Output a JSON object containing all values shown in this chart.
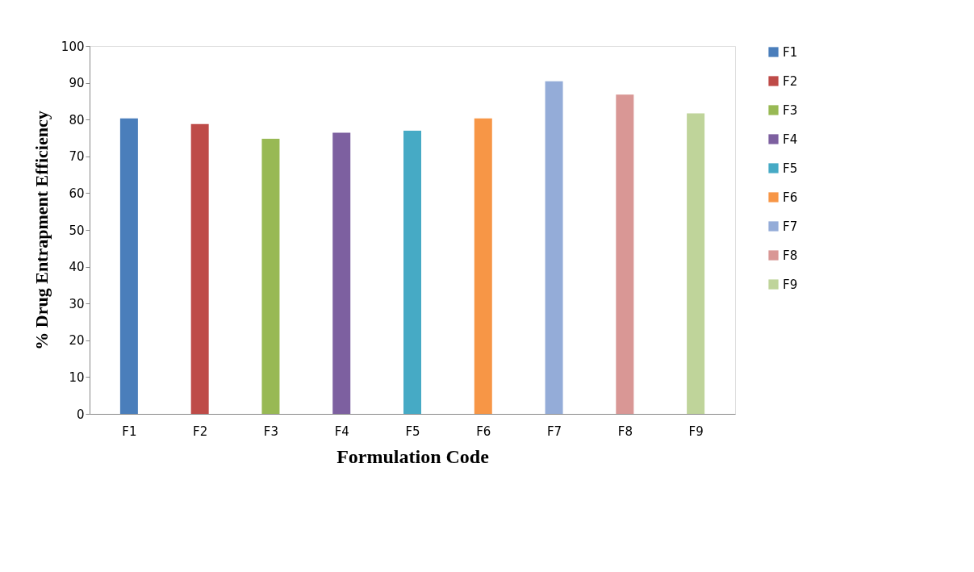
{
  "chart_data": {
    "type": "bar",
    "xlabel": "Formulation Code",
    "ylabel": "% Drug Entrapment Efficiency",
    "categories": [
      "F1",
      "F2",
      "F3",
      "F4",
      "F5",
      "F6",
      "F7",
      "F8",
      "F9"
    ],
    "series": [
      {
        "name": "F1",
        "color": "#4a7ebb",
        "values": [
          80.3,
          null,
          null,
          null,
          null,
          null,
          null,
          null,
          null
        ]
      },
      {
        "name": "F2",
        "color": "#be4b48",
        "values": [
          null,
          78.8,
          null,
          null,
          null,
          null,
          null,
          null,
          null
        ]
      },
      {
        "name": "F3",
        "color": "#98b954",
        "values": [
          null,
          null,
          74.8,
          null,
          null,
          null,
          null,
          null,
          null
        ]
      },
      {
        "name": "F4",
        "color": "#7d60a0",
        "values": [
          null,
          null,
          null,
          76.4,
          null,
          null,
          null,
          null,
          null
        ]
      },
      {
        "name": "F5",
        "color": "#46aac5",
        "values": [
          null,
          null,
          null,
          null,
          77.0,
          null,
          null,
          null,
          null
        ]
      },
      {
        "name": "F6",
        "color": "#f79646",
        "values": [
          null,
          null,
          null,
          null,
          null,
          80.3,
          null,
          null,
          null
        ]
      },
      {
        "name": "F7",
        "color": "#94acd8",
        "values": [
          null,
          null,
          null,
          null,
          null,
          null,
          90.4,
          null,
          null
        ]
      },
      {
        "name": "F8",
        "color": "#d99795",
        "values": [
          null,
          null,
          null,
          null,
          null,
          null,
          null,
          86.8,
          null
        ]
      },
      {
        "name": "F9",
        "color": "#bfd49a",
        "values": [
          null,
          null,
          null,
          null,
          null,
          null,
          null,
          null,
          81.7
        ]
      }
    ],
    "ylim": [
      0,
      100
    ],
    "yticks": [
      0,
      10,
      20,
      30,
      40,
      50,
      60,
      70,
      80,
      90,
      100
    ],
    "grid": false,
    "legend": "right"
  }
}
